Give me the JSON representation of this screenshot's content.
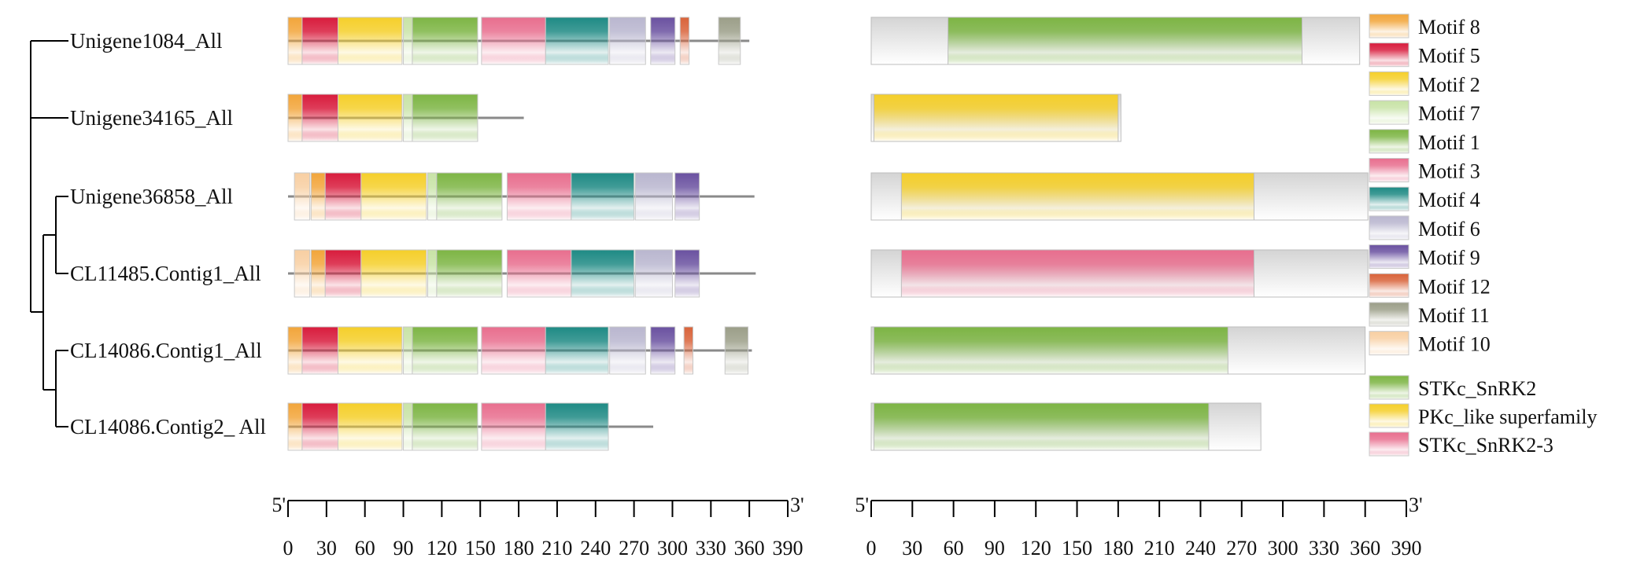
{
  "genes": [
    {
      "name": "Unigene1084_All",
      "length": 360,
      "motifs": [
        {
          "id": "Motif 8",
          "start": 0,
          "end": 11
        },
        {
          "id": "Motif 5",
          "start": 11,
          "end": 39
        },
        {
          "id": "Motif 2",
          "start": 39,
          "end": 89
        },
        {
          "id": "Motif 7",
          "start": 90,
          "end": 97
        },
        {
          "id": "Motif 1",
          "start": 97,
          "end": 148
        },
        {
          "id": "Motif 3",
          "start": 151,
          "end": 201
        },
        {
          "id": "Motif 4",
          "start": 201,
          "end": 250
        },
        {
          "id": "Motif 6",
          "start": 251,
          "end": 279
        },
        {
          "id": "Motif 9",
          "start": 283,
          "end": 302
        },
        {
          "id": "Motif 12",
          "start": 306,
          "end": 313
        },
        {
          "id": "Motif 11",
          "start": 336,
          "end": 353
        }
      ],
      "domains": [
        {
          "id": "STKc_SnRK2",
          "start": 56,
          "end": 314
        }
      ],
      "protein_length": 356
    },
    {
      "name": "Unigene34165_All",
      "length": 184,
      "motifs": [
        {
          "id": "Motif 8",
          "start": 0,
          "end": 11
        },
        {
          "id": "Motif 5",
          "start": 11,
          "end": 39
        },
        {
          "id": "Motif 2",
          "start": 39,
          "end": 89
        },
        {
          "id": "Motif 7",
          "start": 90,
          "end": 97
        },
        {
          "id": "Motif 1",
          "start": 97,
          "end": 148
        }
      ],
      "domains": [
        {
          "id": "PKc_like superfamily",
          "start": 2,
          "end": 180
        }
      ],
      "protein_length": 182
    },
    {
      "name": "Unigene36858_All",
      "length": 364,
      "motifs": [
        {
          "id": "Motif 10",
          "start": 5,
          "end": 17
        },
        {
          "id": "Motif 8",
          "start": 18,
          "end": 29
        },
        {
          "id": "Motif 5",
          "start": 29,
          "end": 57
        },
        {
          "id": "Motif 2",
          "start": 57,
          "end": 108
        },
        {
          "id": "Motif 7",
          "start": 109,
          "end": 116
        },
        {
          "id": "Motif 1",
          "start": 116,
          "end": 167
        },
        {
          "id": "Motif 3",
          "start": 171,
          "end": 221
        },
        {
          "id": "Motif 4",
          "start": 221,
          "end": 270
        },
        {
          "id": "Motif 6",
          "start": 271,
          "end": 300
        },
        {
          "id": "Motif 9",
          "start": 302,
          "end": 321
        }
      ],
      "domains": [
        {
          "id": "PKc_like superfamily",
          "start": 22,
          "end": 279
        }
      ],
      "protein_length": 362
    },
    {
      "name": "CL11485.Contig1_All",
      "length": 365,
      "motifs": [
        {
          "id": "Motif 10",
          "start": 5,
          "end": 17
        },
        {
          "id": "Motif 8",
          "start": 18,
          "end": 29
        },
        {
          "id": "Motif 5",
          "start": 29,
          "end": 57
        },
        {
          "id": "Motif 2",
          "start": 57,
          "end": 108
        },
        {
          "id": "Motif 7",
          "start": 109,
          "end": 116
        },
        {
          "id": "Motif 1",
          "start": 116,
          "end": 167
        },
        {
          "id": "Motif 3",
          "start": 171,
          "end": 221
        },
        {
          "id": "Motif 4",
          "start": 221,
          "end": 270
        },
        {
          "id": "Motif 6",
          "start": 271,
          "end": 300
        },
        {
          "id": "Motif 9",
          "start": 302,
          "end": 321
        }
      ],
      "domains": [
        {
          "id": "STKc_SnRK2-3",
          "start": 22,
          "end": 279
        }
      ],
      "protein_length": 362
    },
    {
      "name": "CL14086.Contig1_All",
      "length": 362,
      "motifs": [
        {
          "id": "Motif 8",
          "start": 0,
          "end": 11
        },
        {
          "id": "Motif 5",
          "start": 11,
          "end": 39
        },
        {
          "id": "Motif 2",
          "start": 39,
          "end": 89
        },
        {
          "id": "Motif 7",
          "start": 90,
          "end": 97
        },
        {
          "id": "Motif 1",
          "start": 97,
          "end": 148
        },
        {
          "id": "Motif 3",
          "start": 151,
          "end": 201
        },
        {
          "id": "Motif 4",
          "start": 201,
          "end": 250
        },
        {
          "id": "Motif 6",
          "start": 251,
          "end": 279
        },
        {
          "id": "Motif 9",
          "start": 283,
          "end": 302
        },
        {
          "id": "Motif 12",
          "start": 309,
          "end": 316
        },
        {
          "id": "Motif 11",
          "start": 341,
          "end": 359
        }
      ],
      "domains": [
        {
          "id": "STKc_SnRK2",
          "start": 2,
          "end": 260
        }
      ],
      "protein_length": 360
    },
    {
      "name": "CL14086.Contig2_ All",
      "length": 285,
      "motifs": [
        {
          "id": "Motif 8",
          "start": 0,
          "end": 11
        },
        {
          "id": "Motif 5",
          "start": 11,
          "end": 39
        },
        {
          "id": "Motif 2",
          "start": 39,
          "end": 89
        },
        {
          "id": "Motif 7",
          "start": 90,
          "end": 97
        },
        {
          "id": "Motif 1",
          "start": 97,
          "end": 148
        },
        {
          "id": "Motif 3",
          "start": 151,
          "end": 201
        },
        {
          "id": "Motif 4",
          "start": 201,
          "end": 250
        }
      ],
      "domains": [
        {
          "id": "STKc_SnRK2",
          "start": 2,
          "end": 246
        }
      ],
      "protein_length": 284
    }
  ],
  "motif_legend": [
    {
      "label": "Motif 8",
      "color": "#F2A53A"
    },
    {
      "label": "Motif 5",
      "color": "#D81B3C"
    },
    {
      "label": "Motif 2",
      "color": "#F5CF2A"
    },
    {
      "label": "Motif 7",
      "color": "#C8E3A6"
    },
    {
      "label": "Motif 1",
      "color": "#7DB544"
    },
    {
      "label": "Motif 3",
      "color": "#E86E8E"
    },
    {
      "label": "Motif 4",
      "color": "#1E8A84"
    },
    {
      "label": "Motif 6",
      "color": "#B9B6CF"
    },
    {
      "label": "Motif 9",
      "color": "#6A51A0"
    },
    {
      "label": "Motif 12",
      "color": "#D9633A"
    },
    {
      "label": "Motif 11",
      "color": "#9B9E88"
    },
    {
      "label": "Motif 10",
      "color": "#F8CFA2"
    }
  ],
  "domain_legend": [
    {
      "label": "STKc_SnRK2",
      "color": "#7DB544"
    },
    {
      "label": "PKc_like superfamily",
      "color": "#F5CF2A"
    },
    {
      "label": "STKc_SnRK2-3",
      "color": "#E86E8E"
    }
  ],
  "axes": [
    {
      "start_label": "5'",
      "end_label": "3'",
      "ticks": [
        "0",
        "30",
        "60",
        "90",
        "120",
        "150",
        "180",
        "210",
        "240",
        "270",
        "300",
        "330",
        "360",
        "390"
      ],
      "max": 390
    },
    {
      "start_label": "5'",
      "end_label": "3'",
      "ticks": [
        "0",
        "30",
        "60",
        "90",
        "120",
        "150",
        "180",
        "210",
        "240",
        "270",
        "300",
        "330",
        "360",
        "390"
      ],
      "max": 390
    }
  ]
}
